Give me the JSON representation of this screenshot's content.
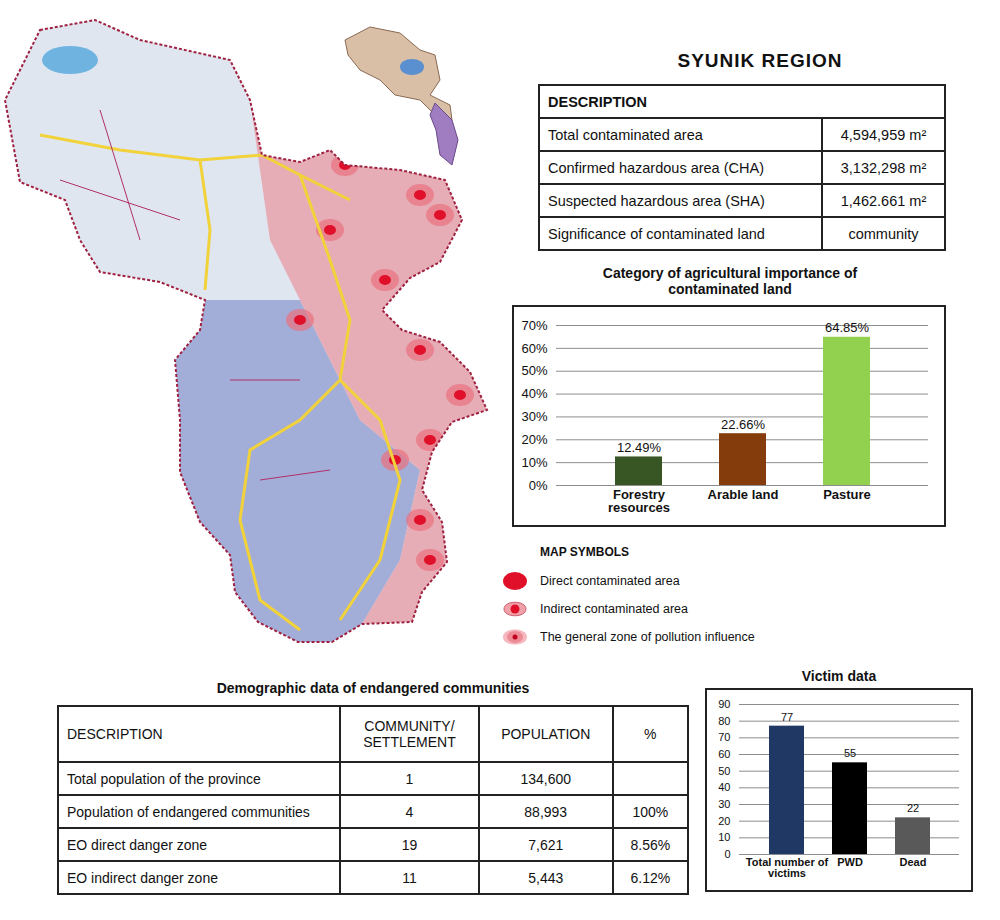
{
  "title": "SYUNIK REGION",
  "description_table": {
    "header": "DESCRIPTION",
    "rows": [
      [
        "Total contaminated area",
        "4,594,959 m²"
      ],
      [
        "Confirmed hazardous area (CHA)",
        "3,132,298 m²"
      ],
      [
        "Suspected hazardous area (SHA)",
        "1,462.661 m²"
      ],
      [
        "Significance of contaminated land",
        "community"
      ]
    ]
  },
  "map_legend": {
    "title": "MAP SYMBOLS",
    "items": [
      "Direct contaminated area",
      "Indirect contaminated area",
      "The general zone of pollution influence"
    ]
  },
  "demographic_table": {
    "title": "Demographic data of endangered communities",
    "header": [
      "DESCRIPTION",
      "COMMUNITY/ SETTLEMENT",
      "POPULATION",
      "%"
    ],
    "rows": [
      [
        "Total population of the province",
        "1",
        "134,600",
        null
      ],
      [
        "Population of endangered communities",
        "4",
        "88,993",
        "100%"
      ],
      [
        "EO direct danger zone",
        "19",
        "7,621",
        "8.56%"
      ],
      [
        "EO indirect danger zone",
        "11",
        "5,443",
        "6.12%"
      ]
    ]
  },
  "chart_data": [
    {
      "type": "bar",
      "title": "Category of agricultural importance of contaminated land",
      "categories": [
        "Forestry resources",
        "Arable land",
        "Pasture"
      ],
      "values": [
        12.49,
        22.66,
        64.85
      ],
      "value_labels": [
        "12.49%",
        "22.66%",
        "64.85%"
      ],
      "colors": [
        "#375623",
        "#843c0c",
        "#92d050"
      ],
      "ylim": [
        0,
        70
      ],
      "yticks": [
        {
          "value": 0,
          "label": "0%"
        },
        {
          "value": 10,
          "label": "10%"
        },
        {
          "value": 20,
          "label": "20%"
        },
        {
          "value": 30,
          "label": "30%"
        },
        {
          "value": 40,
          "label": "40%"
        },
        {
          "value": 50,
          "label": "50%"
        },
        {
          "value": 60,
          "label": "60%"
        },
        {
          "value": 70,
          "label": "70%"
        }
      ],
      "grid": true,
      "data_labels": true
    },
    {
      "type": "bar",
      "title": "Victim data",
      "categories": [
        "Total number of victims",
        "PWD",
        "Dead"
      ],
      "values": [
        77,
        55,
        22
      ],
      "colors": [
        "#1f3864",
        "#000000",
        "#595959"
      ],
      "ylim": [
        0,
        90
      ],
      "yticks": [
        0,
        10,
        20,
        30,
        40,
        50,
        60,
        70,
        80,
        90
      ],
      "grid": true,
      "data_labels": true
    }
  ]
}
